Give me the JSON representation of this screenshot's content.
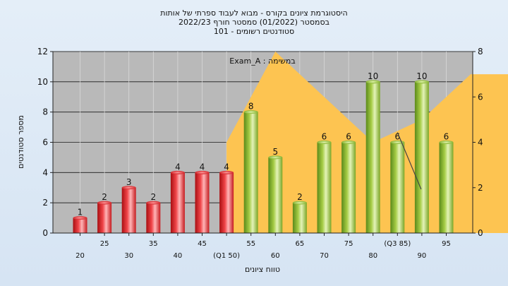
{
  "chart_data": {
    "type": "bar",
    "title_lines": [
      "היסטוגרמת ציונים בקורס - מבוא לעבוד ספרתי של אותות",
      "בסמסטר  (01/2022)  סמסטר חורף  2022/23",
      "סטודנטים רשומים - 101"
    ],
    "ylabel": "מספר סטודנטים",
    "xlabel": "טווח ציונים",
    "annotation": "במשימה : Exam_A",
    "ylim": [
      0,
      12
    ],
    "y_ticks": [
      "0",
      "2",
      "4",
      "6",
      "8",
      "10",
      "12"
    ],
    "y2lim": [
      0,
      8
    ],
    "y2_ticks": [
      "0",
      "2",
      "4",
      "6",
      "8"
    ],
    "grid": true,
    "categories": [
      "20",
      "25",
      "30",
      "35",
      "40",
      "45",
      "(Q1 50)",
      "55",
      "60",
      "65",
      "70",
      "75",
      "80",
      "(Q3 85)",
      "90",
      "95"
    ],
    "values": [
      1,
      2,
      3,
      2,
      4,
      4,
      4,
      8,
      5,
      2,
      6,
      6,
      10,
      6,
      10,
      6
    ],
    "value_labels": [
      "1",
      "2",
      "3",
      "2",
      "4",
      "4",
      "4",
      "8",
      "5",
      "2",
      "6",
      "6",
      "10",
      "6",
      "10",
      "6"
    ],
    "bar_colors": [
      "red",
      "red",
      "red",
      "red",
      "red",
      "red",
      "red",
      "green",
      "green",
      "green",
      "green",
      "green",
      "green",
      "green",
      "green",
      "green"
    ],
    "area_series": {
      "start_category": "(Q1 50)",
      "values": [
        4,
        8,
        6,
        4,
        5,
        7,
        7,
        6
      ]
    },
    "colors": {
      "plot_background": "#b9b9b9",
      "gridline": "#1a1a1a",
      "area_fill": "#fdc451",
      "red_bar": "#e8262b",
      "green_bar": "#9ac23c"
    }
  }
}
